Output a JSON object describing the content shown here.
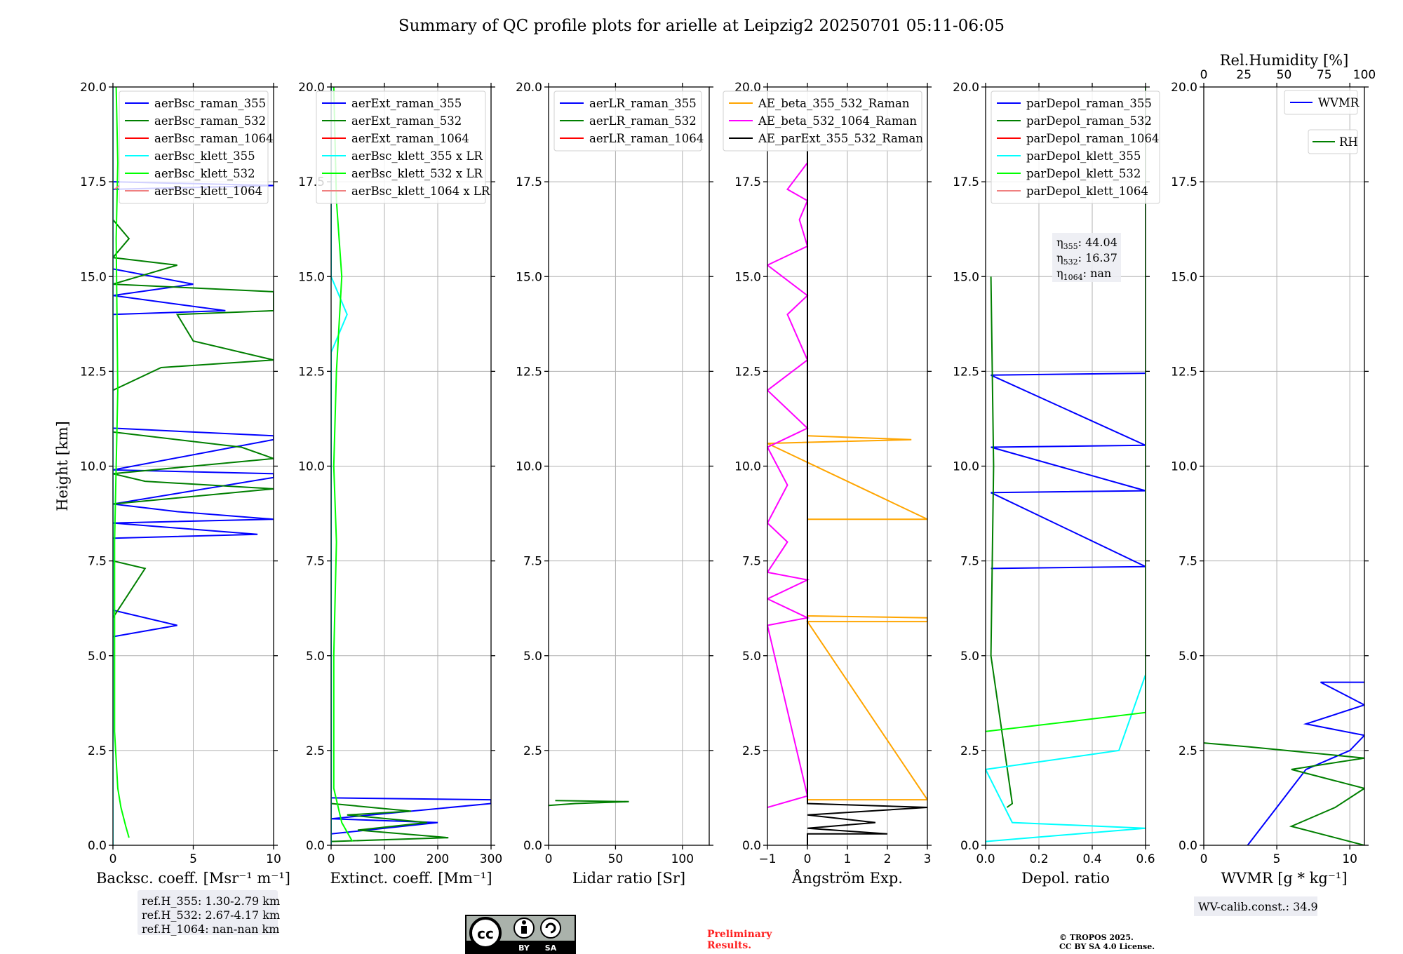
{
  "title": "Summary of QC profile plots for arielle at Leipzig2 20250701 05:11-06:05",
  "colors": {
    "blue": "#0000ff",
    "green": "#007f00",
    "red": "#ff0000",
    "cyan": "#00ffff",
    "lime": "#00ff00",
    "salmon": "#f08080",
    "orange": "#ffa500",
    "magenta": "#ff00ff",
    "black": "#000000",
    "grid": "#b0b0b0"
  },
  "chart_data": [
    {
      "type": "line",
      "xlabel": "Backsc. coeff. [Msr⁻¹ m⁻¹]",
      "ylabel": "Height [km]",
      "xlim": [
        0,
        10
      ],
      "ylim": [
        0,
        20
      ],
      "xticks": [
        "0",
        "5",
        "10"
      ],
      "yticks": [
        "0.0",
        "2.5",
        "5.0",
        "7.5",
        "10.0",
        "12.5",
        "15.0",
        "17.5",
        "20.0"
      ],
      "grid": true,
      "legend_position": "top-right",
      "series": [
        {
          "name": "aerBsc_raman_355",
          "color": "blue",
          "points": [
            [
              0,
              5.5
            ],
            [
              4,
              5.8
            ],
            [
              0,
              6.2
            ],
            [
              0,
              8.1
            ],
            [
              9,
              8.2
            ],
            [
              0,
              8.5
            ],
            [
              10,
              8.6
            ],
            [
              4,
              8.8
            ],
            [
              0,
              9.0
            ],
            [
              10,
              9.7
            ],
            [
              10,
              9.8
            ],
            [
              0,
              9.9
            ],
            [
              10,
              10.7
            ],
            [
              10,
              10.8
            ],
            [
              0,
              11.0
            ],
            [
              0,
              12.8
            ],
            [
              0,
              14.0
            ],
            [
              7,
              14.1
            ],
            [
              0,
              14.5
            ],
            [
              5,
              14.8
            ],
            [
              0,
              15.2
            ],
            [
              0,
              17.3
            ],
            [
              10,
              17.4
            ],
            [
              0,
              17.5
            ]
          ]
        },
        {
          "name": "aerBsc_raman_532",
          "color": "green",
          "points": [
            [
              0,
              6.0
            ],
            [
              2,
              7.3
            ],
            [
              0,
              7.5
            ],
            [
              0,
              9.0
            ],
            [
              10,
              9.4
            ],
            [
              2,
              9.6
            ],
            [
              0,
              9.8
            ],
            [
              10,
              10.2
            ],
            [
              8,
              10.5
            ],
            [
              0,
              10.9
            ],
            [
              0,
              12.0
            ],
            [
              3,
              12.6
            ],
            [
              10,
              12.8
            ],
            [
              5,
              13.3
            ],
            [
              4,
              14.0
            ],
            [
              10,
              14.1
            ],
            [
              10,
              14.6
            ],
            [
              0,
              14.8
            ],
            [
              4,
              15.3
            ],
            [
              0,
              15.5
            ],
            [
              1,
              16.0
            ],
            [
              0,
              16.5
            ]
          ]
        },
        {
          "name": "aerBsc_raman_1064",
          "color": "red",
          "points": []
        },
        {
          "name": "aerBsc_klett_355",
          "color": "cyan",
          "points": [
            [
              0,
              0.0
            ],
            [
              0,
              5.0
            ],
            [
              0,
              10.0
            ],
            [
              0,
              20.0
            ]
          ]
        },
        {
          "name": "aerBsc_klett_532",
          "color": "lime",
          "points": [
            [
              1,
              0.2
            ],
            [
              0.8,
              0.5
            ],
            [
              0.5,
              1.0
            ],
            [
              0.3,
              1.5
            ],
            [
              0.1,
              3.0
            ],
            [
              0.1,
              8.0
            ],
            [
              0.3,
              12.0
            ],
            [
              0.2,
              16.0
            ],
            [
              0.3,
              18.0
            ],
            [
              0.2,
              20.0
            ]
          ]
        },
        {
          "name": "aerBsc_klett_1064",
          "color": "salmon",
          "points": [
            [
              0.1,
              17.3
            ],
            [
              0.4,
              17.4
            ]
          ]
        }
      ],
      "info_box": [
        "ref.H_355: 1.30-2.79 km",
        "ref.H_532: 2.67-4.17 km",
        "ref.H_1064: nan-nan km"
      ]
    },
    {
      "type": "line",
      "xlabel": "Extinct. coeff. [Mm⁻¹]",
      "xlim": [
        0,
        300
      ],
      "ylim": [
        0,
        20
      ],
      "xticks": [
        "0",
        "100",
        "200",
        "300"
      ],
      "yticks": [
        "0.0",
        "2.5",
        "5.0",
        "7.5",
        "10.0",
        "12.5",
        "15.0",
        "17.5",
        "20.0"
      ],
      "grid": true,
      "legend_position": "top-right",
      "series": [
        {
          "name": "aerExt_raman_355",
          "color": "blue",
          "points": [
            [
              0,
              0.3
            ],
            [
              200,
              0.6
            ],
            [
              0,
              0.7
            ],
            [
              300,
              1.1
            ],
            [
              300,
              1.2
            ],
            [
              0,
              1.25
            ]
          ]
        },
        {
          "name": "aerExt_raman_532",
          "color": "green",
          "points": [
            [
              0,
              0.1
            ],
            [
              220,
              0.2
            ],
            [
              50,
              0.4
            ],
            [
              180,
              0.6
            ],
            [
              30,
              0.8
            ],
            [
              150,
              0.9
            ],
            [
              0,
              1.1
            ]
          ]
        },
        {
          "name": "aerExt_raman_1064",
          "color": "red",
          "points": []
        },
        {
          "name": "aerBsc_klett_355 x LR",
          "color": "cyan",
          "points": [
            [
              0,
              0.0
            ],
            [
              0,
              5.0
            ],
            [
              0,
              13.0
            ],
            [
              30,
              14.0
            ],
            [
              0,
              15.0
            ],
            [
              0,
              20.0
            ]
          ]
        },
        {
          "name": "aerBsc_klett_532 x LR",
          "color": "lime",
          "points": [
            [
              40,
              0.1
            ],
            [
              20,
              0.6
            ],
            [
              5,
              1.5
            ],
            [
              5,
              5.0
            ],
            [
              10,
              8.0
            ],
            [
              5,
              10.0
            ],
            [
              10,
              12.5
            ],
            [
              20,
              15.0
            ],
            [
              10,
              17.0
            ],
            [
              5,
              20.0
            ]
          ]
        },
        {
          "name": "aerBsc_klett_1064 x LR",
          "color": "salmon",
          "points": []
        }
      ]
    },
    {
      "type": "line",
      "xlabel": "Lidar ratio [Sr]",
      "xlim": [
        0,
        120
      ],
      "ylim": [
        0,
        20
      ],
      "xticks": [
        "0",
        "50",
        "100"
      ],
      "yticks": [
        "0.0",
        "2.5",
        "5.0",
        "7.5",
        "10.0",
        "12.5",
        "15.0",
        "17.5",
        "20.0"
      ],
      "grid": true,
      "legend_position": "top-left",
      "series": [
        {
          "name": "aerLR_raman_355",
          "color": "blue",
          "points": []
        },
        {
          "name": "aerLR_raman_532",
          "color": "green",
          "points": [
            [
              0,
              1.05
            ],
            [
              20,
              1.1
            ],
            [
              60,
              1.15
            ],
            [
              5,
              1.18
            ]
          ]
        },
        {
          "name": "aerLR_raman_1064",
          "color": "red",
          "points": []
        }
      ]
    },
    {
      "type": "line",
      "xlabel": "Ångström Exp.",
      "xlim": [
        -1,
        3
      ],
      "ylim": [
        0,
        20
      ],
      "xticks": [
        "−1",
        "0",
        "1",
        "2",
        "3"
      ],
      "yticks": [
        "0.0",
        "2.5",
        "5.0",
        "7.5",
        "10.0",
        "12.5",
        "15.0",
        "17.5",
        "20.0"
      ],
      "grid": true,
      "legend_position": "top-right",
      "series": [
        {
          "name": "AE_beta_355_532_Raman",
          "color": "orange",
          "points": [
            [
              0,
              1.2
            ],
            [
              3,
              1.2
            ],
            [
              0,
              5.9
            ],
            [
              3,
              5.9
            ],
            [
              3,
              6.0
            ],
            [
              0,
              6.05
            ],
            [
              0,
              8.6
            ],
            [
              3,
              8.6
            ],
            [
              -1,
              10.6
            ],
            [
              2.6,
              10.7
            ],
            [
              0,
              10.8
            ]
          ]
        },
        {
          "name": "AE_beta_532_1064_Raman",
          "color": "magenta",
          "points": [
            [
              -1,
              1.0
            ],
            [
              0,
              1.3
            ],
            [
              -1,
              5.8
            ],
            [
              0,
              6.0
            ],
            [
              -1,
              6.5
            ],
            [
              0,
              7.0
            ],
            [
              -1,
              7.2
            ],
            [
              -0.5,
              8.0
            ],
            [
              -1,
              8.5
            ],
            [
              -0.5,
              9.5
            ],
            [
              -1,
              10.5
            ],
            [
              0,
              11.0
            ],
            [
              -1,
              12.0
            ],
            [
              0,
              12.8
            ],
            [
              -0.5,
              14.0
            ],
            [
              0,
              14.5
            ],
            [
              -1,
              15.3
            ],
            [
              0,
              15.8
            ],
            [
              -0.2,
              16.5
            ],
            [
              0,
              17.0
            ],
            [
              -0.5,
              17.3
            ],
            [
              0,
              18.0
            ]
          ]
        },
        {
          "name": "AE_parExt_355_532_Raman",
          "color": "black",
          "points": [
            [
              0,
              0.0
            ],
            [
              0,
              0.3
            ],
            [
              2,
              0.3
            ],
            [
              0,
              0.45
            ],
            [
              1.7,
              0.6
            ],
            [
              0,
              0.8
            ],
            [
              3,
              1.0
            ],
            [
              0,
              1.1
            ],
            [
              0,
              18.5
            ]
          ]
        }
      ]
    },
    {
      "type": "line",
      "xlabel": "Depol. ratio",
      "xlim": [
        0,
        0.6
      ],
      "ylim": [
        0,
        20
      ],
      "xticks": [
        "0.0",
        "0.2",
        "0.4",
        "0.6"
      ],
      "yticks": [
        "0.0",
        "2.5",
        "5.0",
        "7.5",
        "10.0",
        "12.5",
        "15.0",
        "17.5",
        "20.0"
      ],
      "grid": true,
      "legend_position": "top-left",
      "series": [
        {
          "name": "parDepol_raman_355",
          "color": "blue",
          "points": [
            [
              0.02,
              7.3
            ],
            [
              0.6,
              7.35
            ],
            [
              0.02,
              9.3
            ],
            [
              0.6,
              9.35
            ],
            [
              0.02,
              10.5
            ],
            [
              0.6,
              10.55
            ],
            [
              0.02,
              12.4
            ],
            [
              0.6,
              12.45
            ]
          ]
        },
        {
          "name": "parDepol_raman_532",
          "color": "green",
          "points": [
            [
              0.08,
              1.0
            ],
            [
              0.1,
              1.1
            ],
            [
              0.02,
              5.0
            ],
            [
              0.03,
              10.0
            ],
            [
              0.02,
              15.0
            ]
          ]
        },
        {
          "name": "parDepol_raman_1064",
          "color": "red",
          "points": []
        },
        {
          "name": "parDepol_klett_355",
          "color": "cyan",
          "points": [
            [
              0.0,
              0.0
            ],
            [
              0.0,
              0.1
            ],
            [
              0.6,
              0.45
            ],
            [
              0.1,
              0.6
            ],
            [
              0.0,
              2.0
            ],
            [
              0.5,
              2.5
            ],
            [
              0.6,
              4.5
            ],
            [
              0.6,
              7.8
            ],
            [
              0.6,
              12.0
            ],
            [
              0.6,
              14.5
            ],
            [
              0.6,
              17.8
            ]
          ]
        },
        {
          "name": "parDepol_klett_532",
          "color": "lime",
          "points": [
            [
              0.0,
              3.0
            ],
            [
              0.6,
              3.5
            ],
            [
              0.6,
              6.0
            ],
            [
              0.6,
              8.5
            ],
            [
              0.6,
              9.8
            ],
            [
              0.6,
              11.5
            ],
            [
              0.6,
              13.0
            ],
            [
              0.6,
              15.8
            ],
            [
              0.6,
              19.5
            ],
            [
              0.6,
              20.0
            ]
          ]
        },
        {
          "name": "parDepol_klett_1064",
          "color": "salmon",
          "points": []
        }
      ],
      "info_box": [
        {
          "sym": "η",
          "sub": "355",
          "val": ": 44.04"
        },
        {
          "sym": "η",
          "sub": "532",
          "val": ": 16.37"
        },
        {
          "sym": "η",
          "sub": "1064",
          "val": ": nan"
        }
      ]
    },
    {
      "type": "line",
      "xlabel": "WVMR [g * kg⁻¹]",
      "xlabel_parts": [
        "WVMR [",
        "g",
        " * ",
        "kg",
        "−1",
        "]"
      ],
      "xlim": [
        0,
        11
      ],
      "ylim": [
        0,
        20
      ],
      "xticks": [
        "0",
        "5",
        "10"
      ],
      "yticks": [
        "0.0",
        "2.5",
        "5.0",
        "7.5",
        "10.0",
        "12.5",
        "15.0",
        "17.5",
        "20.0"
      ],
      "top_xlabel": "Rel.Humidity [%]",
      "top_xlim": [
        0,
        100
      ],
      "top_xticks": [
        "0",
        "25",
        "50",
        "75",
        "100"
      ],
      "grid": true,
      "legend_position": "top-right",
      "series": [
        {
          "name": "WVMR",
          "color": "blue",
          "points": [
            [
              3,
              0.0
            ],
            [
              4,
              0.5
            ],
            [
              5,
              1.0
            ],
            [
              6,
              1.5
            ],
            [
              7,
              2.0
            ],
            [
              10,
              2.5
            ],
            [
              11,
              2.9
            ],
            [
              7,
              3.2
            ],
            [
              11,
              3.7
            ],
            [
              8,
              4.3
            ],
            [
              11,
              4.3
            ]
          ]
        },
        {
          "name": "RH",
          "color": "green",
          "points": [
            [
              11,
              0.0
            ],
            [
              6,
              0.5
            ],
            [
              9,
              1.0
            ],
            [
              11,
              1.5
            ],
            [
              6,
              2.0
            ],
            [
              11,
              2.3
            ],
            [
              3,
              2.6
            ],
            [
              0,
              2.7
            ]
          ]
        }
      ],
      "info_box": [
        "WV-calib.const.: 34.9"
      ]
    }
  ],
  "footer": {
    "cc_by": "BY",
    "cc_sa": "SA",
    "prelim_1": "Preliminary",
    "prelim_2": "Results.",
    "copyright_1": "© TROPOS 2025.",
    "copyright_2": "CC BY SA 4.0 License."
  }
}
